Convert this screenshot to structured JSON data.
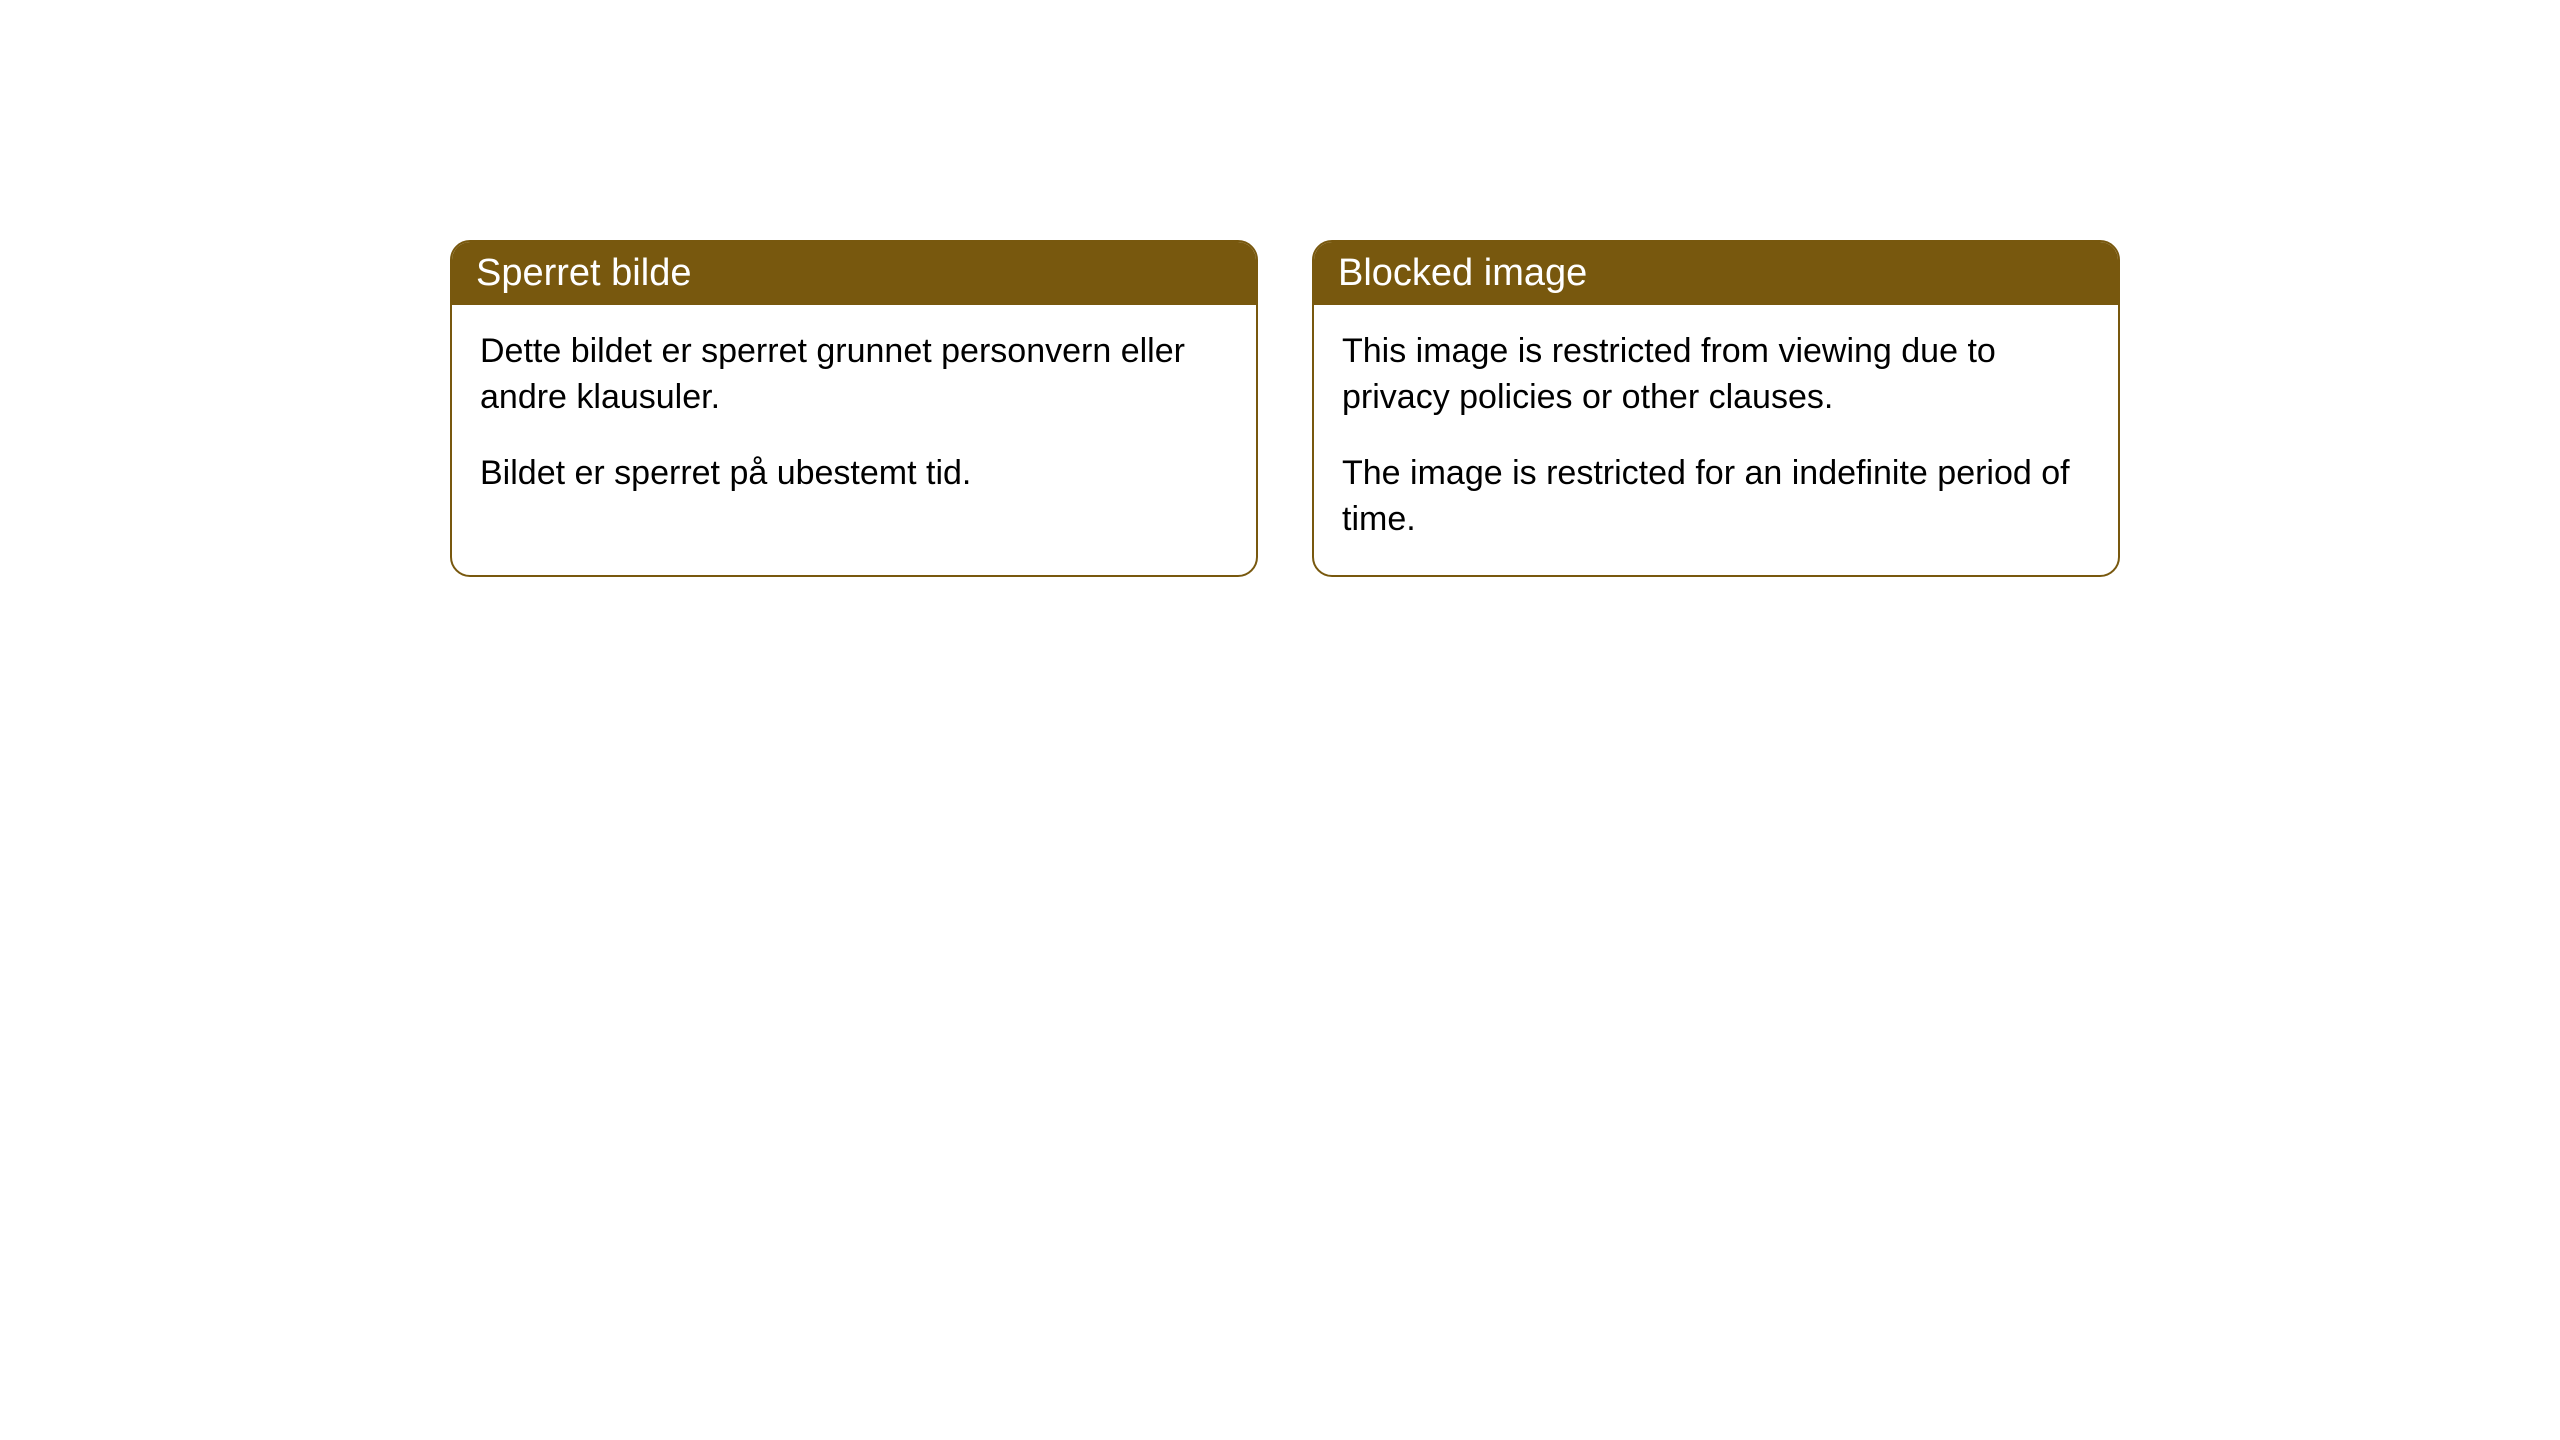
{
  "cards": [
    {
      "title": "Sperret bilde",
      "paragraph1": "Dette bildet er sperret grunnet personvern eller andre klausuler.",
      "paragraph2": "Bildet er sperret på ubestemt tid."
    },
    {
      "title": "Blocked image",
      "paragraph1": "This image is restricted from viewing due to privacy policies or other clauses.",
      "paragraph2": "The image is restricted for an indefinite period of time."
    }
  ],
  "style": {
    "header_background": "#78580e",
    "header_text_color": "#ffffff",
    "border_color": "#78580e",
    "body_text_color": "#000000",
    "background_color": "#ffffff",
    "border_radius": 20,
    "header_fontsize": 38,
    "body_fontsize": 34
  }
}
